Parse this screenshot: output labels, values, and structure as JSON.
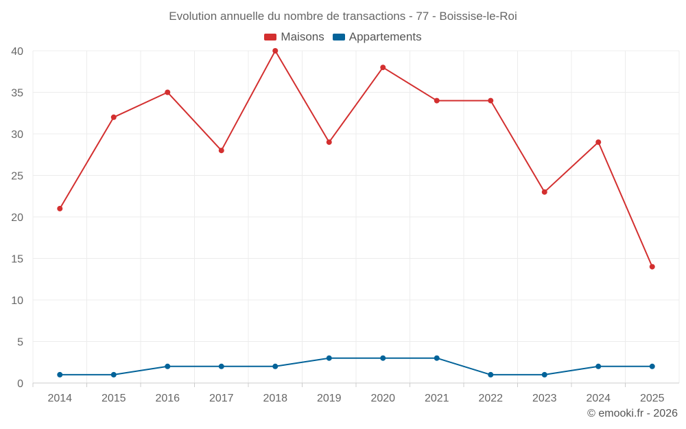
{
  "chart_data": {
    "type": "line",
    "title": "Evolution annuelle du nombre de transactions - 77 - Boissise-le-Roi",
    "categories": [
      "2014",
      "2015",
      "2016",
      "2017",
      "2018",
      "2019",
      "2020",
      "2021",
      "2022",
      "2023",
      "2024",
      "2025"
    ],
    "series": [
      {
        "name": "Maisons",
        "color": "#d32f2f",
        "values": [
          21,
          32,
          35,
          28,
          40,
          29,
          38,
          34,
          34,
          23,
          29,
          14
        ]
      },
      {
        "name": "Appartements",
        "color": "#036399",
        "values": [
          1,
          1,
          2,
          2,
          2,
          3,
          3,
          3,
          1,
          1,
          2,
          2
        ]
      }
    ],
    "ylim": [
      0,
      40
    ],
    "yticks": [
      0,
      5,
      10,
      15,
      20,
      25,
      30,
      35,
      40
    ],
    "grid": true,
    "legend": "top-center"
  },
  "credit": "© emooki.fr - 2026"
}
